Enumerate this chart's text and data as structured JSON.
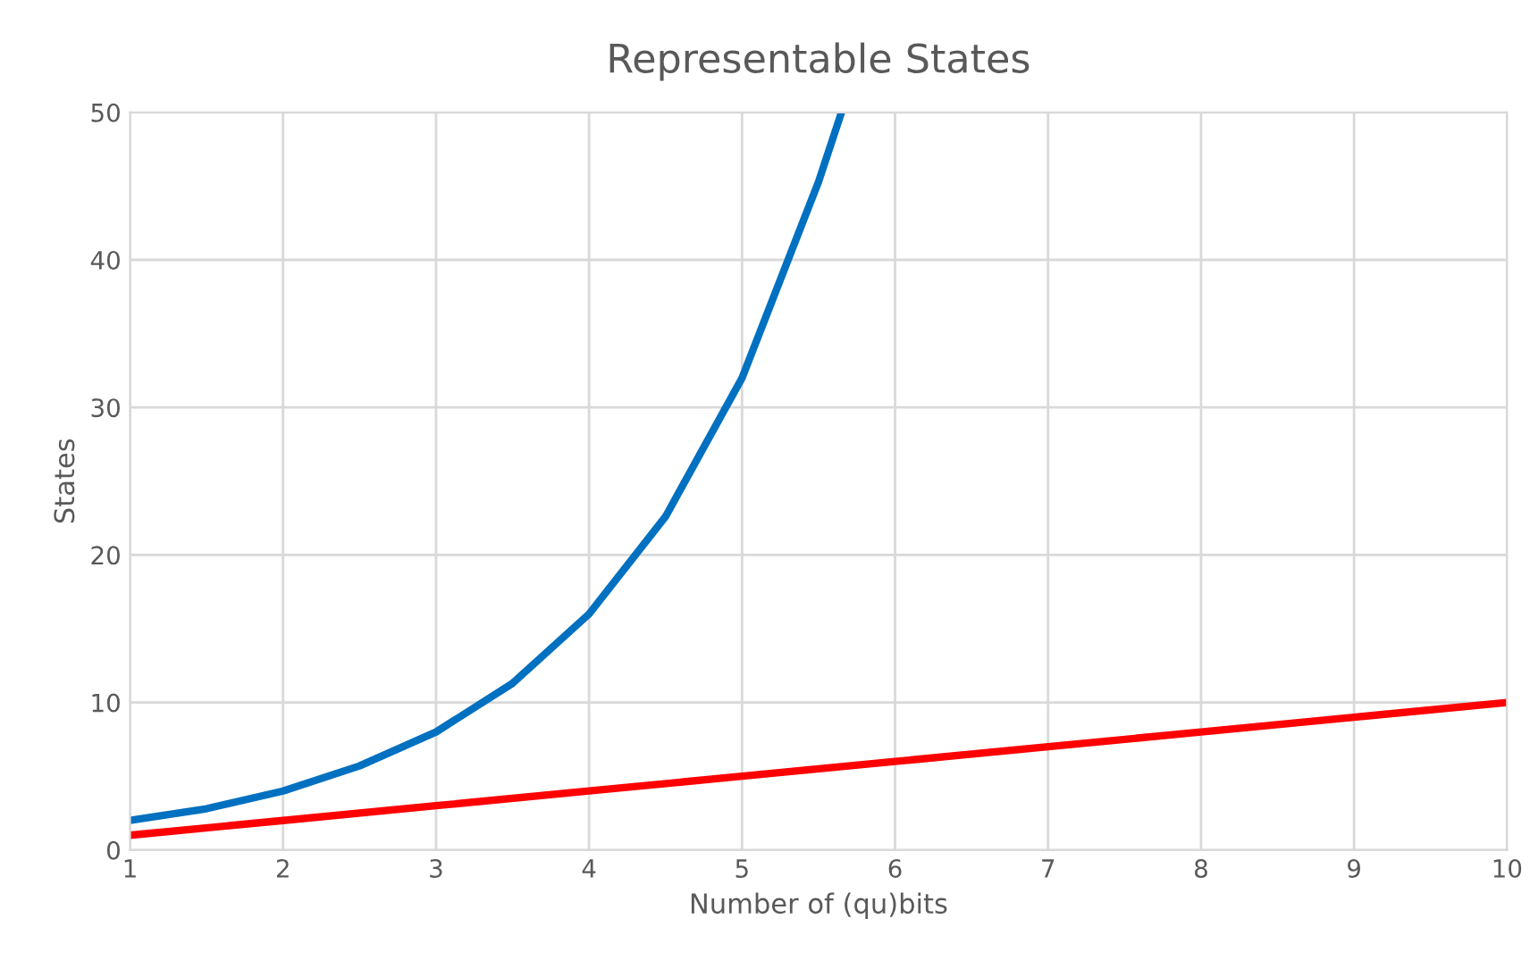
{
  "chart_data": {
    "type": "line",
    "title": "Representable States",
    "xlabel": "Number of (qu)bits",
    "ylabel": "States",
    "series": [
      {
        "color": "#0070c0",
        "x": [
          1,
          1.5,
          2,
          2.5,
          3,
          3.5,
          4,
          4.5,
          5,
          5.5,
          5.65
        ],
        "values": [
          2,
          2.8,
          4,
          5.7,
          8,
          11.3,
          16,
          22.6,
          32,
          45.3,
          50
        ]
      },
      {
        "color": "#ff0000",
        "x": [
          1,
          2,
          3,
          4,
          5,
          6,
          7,
          8,
          9,
          10
        ],
        "values": [
          1,
          2,
          3,
          4,
          5,
          6,
          7,
          8,
          9,
          10
        ]
      }
    ],
    "xlim": [
      1,
      10
    ],
    "xticks": [
      1,
      2,
      3,
      4,
      5,
      6,
      7,
      8,
      9,
      10
    ],
    "ylim": [
      0,
      50
    ],
    "yticks": [
      0,
      10,
      20,
      30,
      40,
      50
    ],
    "grid": true,
    "marker": "none",
    "line_style": "solid"
  }
}
